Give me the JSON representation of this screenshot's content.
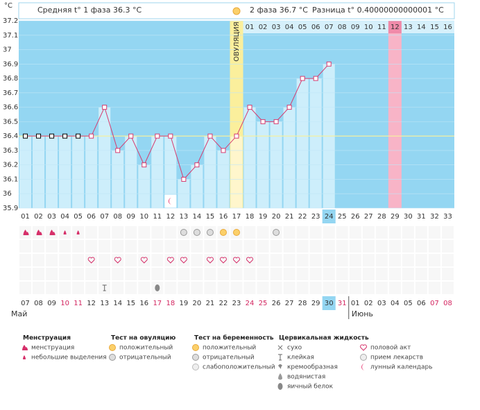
{
  "header": {
    "phase1": "Средняя t° 1 фаза 36.3 °C",
    "phase2": "2 фаза 36.7 °C",
    "difference": "Разница t° 0.40000000000001 °C"
  },
  "chart_data": {
    "type": "line",
    "y_label": "°C",
    "ovulation_label": "ОВУЛЯЦИЯ",
    "ovulation_day": 17,
    "highlight_day": 24,
    "pink_day": 29,
    "cycle_days": [
      "01",
      "02",
      "03",
      "04",
      "05",
      "06",
      "07",
      "08",
      "09",
      "10",
      "11",
      "12",
      "13",
      "14",
      "15",
      "16",
      "17",
      "18",
      "19",
      "20",
      "21",
      "22",
      "23",
      "24",
      "25",
      "26",
      "27",
      "28",
      "29",
      "30",
      "31",
      "32",
      "33"
    ],
    "phase_days": [
      "01",
      "02",
      "03",
      "04",
      "05",
      "06",
      "07",
      "08",
      "09",
      "10",
      "11",
      "12",
      "13",
      "14",
      "15",
      "16"
    ],
    "dates": [
      "07",
      "08",
      "09",
      "10",
      "11",
      "12",
      "13",
      "14",
      "15",
      "16",
      "17",
      "18",
      "19",
      "20",
      "21",
      "22",
      "23",
      "24",
      "25",
      "26",
      "27",
      "28",
      "29",
      "30",
      "31",
      "01",
      "02",
      "03",
      "04",
      "05",
      "06",
      "07",
      "08"
    ],
    "weekend_dates": [
      4,
      5,
      11,
      12,
      18,
      19,
      25,
      32,
      33
    ],
    "months": [
      {
        "name": "Май",
        "day": 1
      },
      {
        "name": "Июнь",
        "day": 26
      }
    ],
    "series": [
      {
        "name": "t°",
        "color": "#d63a6e",
        "values": [
          36.4,
          36.4,
          36.4,
          36.4,
          36.4,
          36.4,
          36.6,
          36.3,
          36.4,
          36.2,
          36.4,
          36.4,
          36.1,
          36.2,
          36.4,
          36.3,
          36.4,
          36.6,
          36.5,
          36.5,
          36.6,
          36.8,
          36.8,
          36.9,
          null,
          null,
          null,
          null,
          null,
          null,
          null,
          null,
          null
        ]
      }
    ],
    "coverline": 36.4,
    "ylim": [
      35.9,
      37.2
    ],
    "yticks": [
      35.9,
      36,
      36.1,
      36.2,
      36.3,
      36.4,
      36.5,
      36.6,
      36.7,
      36.8,
      36.9,
      37,
      37.1,
      37.2
    ],
    "grid": true
  },
  "legend": [
    {
      "title": "Менструация",
      "items": [
        {
          "text": "менструация",
          "days": [
            1,
            2,
            3
          ]
        },
        {
          "text": "небольшие выделения",
          "days": [
            4,
            5
          ]
        }
      ]
    },
    {
      "title": "Тест на овуляцию",
      "items": [
        {
          "text": "положительный",
          "days": [
            16,
            17
          ]
        },
        {
          "text": "отрицательный",
          "days": [
            13,
            14,
            15,
            20
          ]
        }
      ]
    },
    {
      "title": "Тест на беременность",
      "items": [
        {
          "text": "положительный",
          "days": []
        },
        {
          "text": "отрицательный",
          "days": []
        },
        {
          "text": "слабоположительный",
          "days": []
        }
      ]
    },
    {
      "title": "Цервикальная жидкость",
      "items": [
        {
          "text": "сухо",
          "days": []
        },
        {
          "text": "клейкая",
          "days": [
            7
          ]
        },
        {
          "text": "кремообразная",
          "days": []
        },
        {
          "text": "водянистая",
          "days": []
        },
        {
          "text": "яичный белок",
          "days": [
            11
          ]
        },
        {
          "text": "половой акт",
          "days": [
            6,
            8,
            10,
            12,
            13,
            15,
            16,
            17,
            18
          ]
        },
        {
          "text": "прием лекарств",
          "days": []
        },
        {
          "text": "лунный календарь",
          "days": [
            12
          ]
        }
      ]
    }
  ]
}
